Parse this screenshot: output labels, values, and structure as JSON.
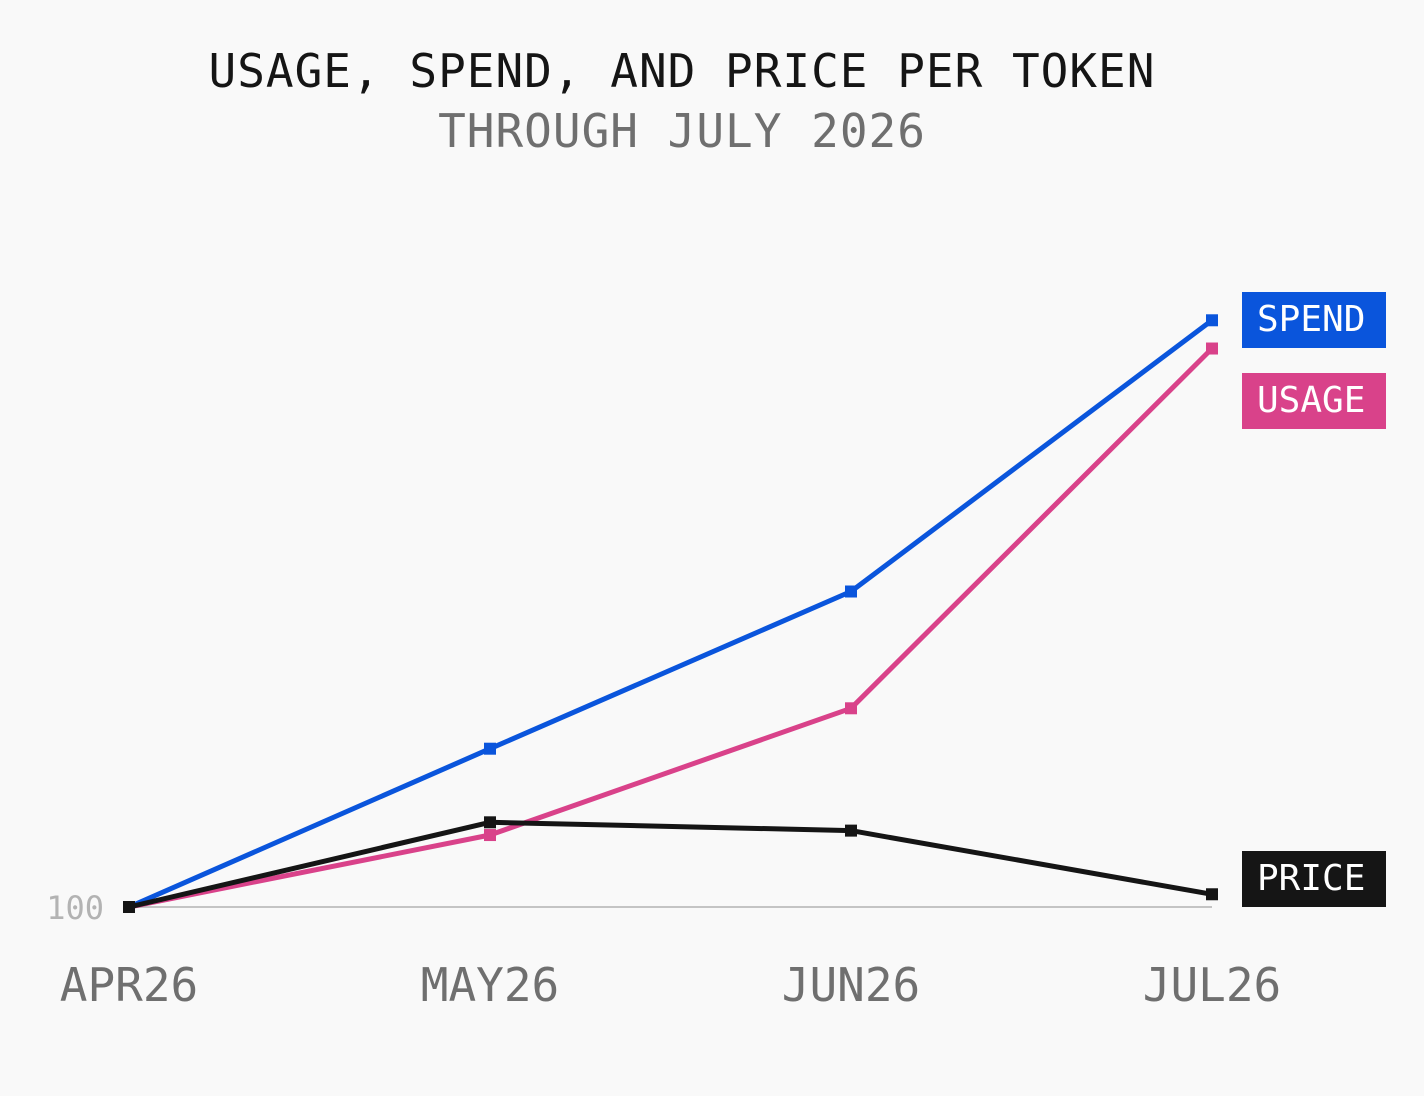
{
  "title": "USAGE, SPEND, AND PRICE PER TOKEN",
  "subtitle": "THROUGH JULY 2026",
  "chart_data": {
    "type": "line",
    "title": "USAGE, SPEND, AND PRICE PER TOKEN",
    "subtitle": "THROUGH JULY 2026",
    "categories": [
      "APR26",
      "MAY26",
      "JUN26",
      "JUL26"
    ],
    "baseline_label": "100",
    "baseline_value": 100,
    "ylim": [
      100,
      1130
    ],
    "grid": false,
    "legend": "direct labels at right end of lines",
    "series": [
      {
        "name": "SPEND",
        "color": "#0a55dc",
        "values": [
          100,
          386,
          670,
          1160
        ]
      },
      {
        "name": "USAGE",
        "color": "#d9428a",
        "values": [
          100,
          230,
          459,
          1109
        ]
      },
      {
        "name": "PRICE",
        "color": "#151515",
        "values": [
          100,
          253,
          238,
          123
        ]
      }
    ]
  }
}
